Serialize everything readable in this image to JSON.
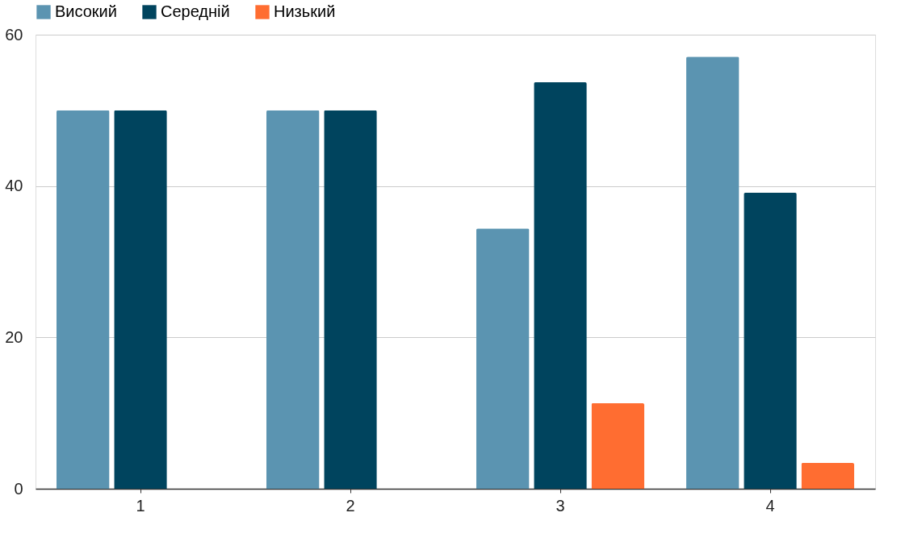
{
  "chart_data": {
    "type": "bar",
    "categories": [
      "1",
      "2",
      "3",
      "4"
    ],
    "series": [
      {
        "name": "Високий",
        "color": "#5b94b1",
        "values": [
          50,
          50,
          34.4,
          57.1
        ]
      },
      {
        "name": "Середній",
        "color": "#00445e",
        "values": [
          50,
          50,
          53.7,
          39.1
        ]
      },
      {
        "name": "Низький",
        "color": "#ff6d31",
        "values": [
          null,
          null,
          11.3,
          3.4
        ]
      }
    ],
    "ylim": [
      0,
      60
    ],
    "yticks": [
      0,
      20,
      40,
      60
    ],
    "grid": "y",
    "legend": "top"
  }
}
